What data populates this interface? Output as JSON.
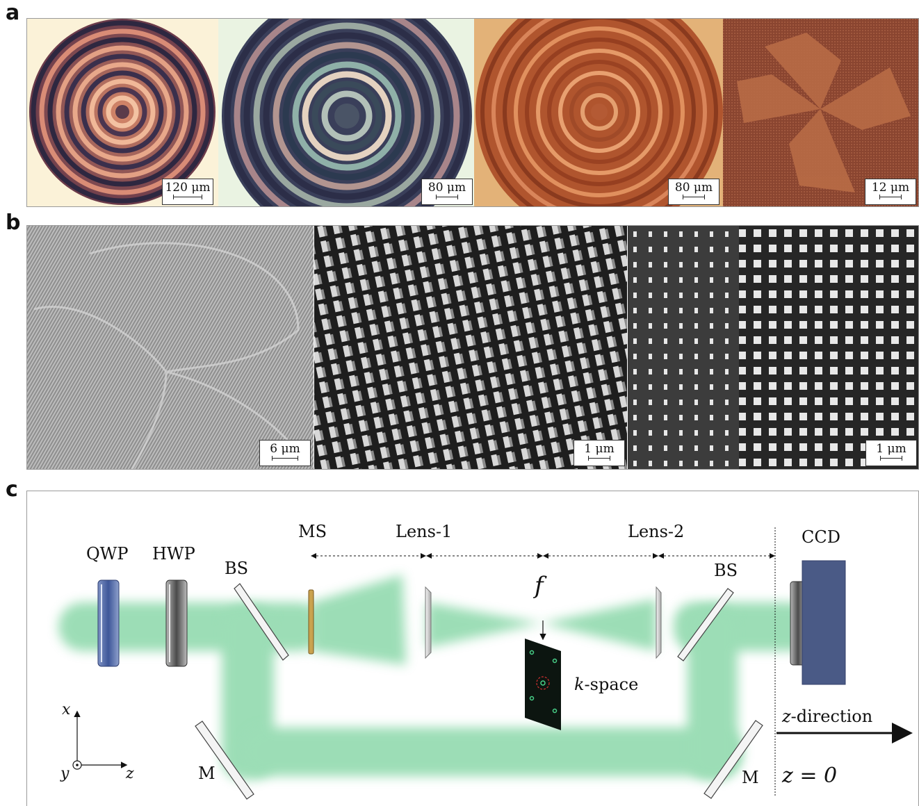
{
  "panels": {
    "a": {
      "letter": "a",
      "images": [
        {
          "scale": "120 μm"
        },
        {
          "scale": "80 μm"
        },
        {
          "scale": "80 μm"
        },
        {
          "scale": "12 μm"
        }
      ]
    },
    "b": {
      "letter": "b",
      "images": [
        {
          "scale": "6 μm"
        },
        {
          "scale": "1 μm"
        },
        {
          "scale": "1 μm"
        }
      ]
    },
    "c": {
      "letter": "c",
      "labels": {
        "qwp": "QWP",
        "hwp": "HWP",
        "bs_left": "BS",
        "ms": "MS",
        "lens1": "Lens-1",
        "lens2": "Lens-2",
        "f": "f",
        "bs_right": "BS",
        "ccd": "CCD",
        "kspace_k": "k",
        "kspace_rest": "-space",
        "zdir_z": "z",
        "zdir_rest": "-direction",
        "z0": "z = 0",
        "m_left": "M",
        "m_right": "M",
        "axis_x": "x",
        "axis_y": "y",
        "axis_z": "z"
      }
    }
  },
  "colors": {
    "beam": "#4cc27a",
    "ccd": "#4a5a86",
    "qwp": "#4f68a6",
    "frame": "#9a9a9a"
  }
}
